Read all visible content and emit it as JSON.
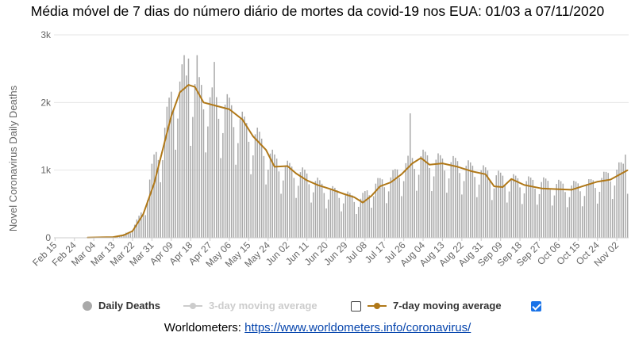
{
  "title": "Média móvel de 7 dias do número diário de mortes da covid-19 nos EUA: 01/03 a 07/11/2020",
  "source": {
    "label": "Worldometers:",
    "link": "https://www.worldometers.info/coronavirus/"
  },
  "legend": {
    "daily": "Daily Deaths",
    "ma3": "3-day moving average",
    "ma7": "7-day moving average",
    "ma3_checked": false,
    "ma7_checked": true
  },
  "colors": {
    "bars": "#a9a9a9",
    "ma7": "#b07818",
    "ma3_disabled": "#cccccc",
    "grid": "#e6e6e6",
    "axis_text": "#666666"
  },
  "chart_data": {
    "type": "bar",
    "ylabel": "Novel Coronavirus Daily Deaths",
    "ylim": [
      0,
      3000
    ],
    "yticks": [
      0,
      1000,
      2000,
      3000
    ],
    "ytick_labels": [
      "0",
      "1k",
      "2k",
      "3k"
    ],
    "x_start": "Feb 15",
    "x_end": "Nov 07",
    "xtick_labels": [
      "Feb 15",
      "Feb 24",
      "Mar 04",
      "Mar 13",
      "Mar 22",
      "Mar 31",
      "Apr 09",
      "Apr 18",
      "Apr 27",
      "May 06",
      "May 15",
      "May 24",
      "Jun 02",
      "Jun 11",
      "Jun 20",
      "Jun 29",
      "Jul 08",
      "Jul 17",
      "Jul 26",
      "Aug 04",
      "Aug 13",
      "Aug 22",
      "Aug 31",
      "Sep 09",
      "Sep 18",
      "Sep 27",
      "Oct 06",
      "Oct 15",
      "Oct 24",
      "Nov 02"
    ],
    "grid": true,
    "series": [
      {
        "name": "Daily Deaths",
        "kind": "bars",
        "anchors": [
          {
            "date": "Feb 15",
            "value": 0
          },
          {
            "date": "Mar 01",
            "value": 1
          },
          {
            "date": "Mar 10",
            "value": 5
          },
          {
            "date": "Mar 17",
            "value": 30
          },
          {
            "date": "Mar 22",
            "value": 130
          },
          {
            "date": "Mar 27",
            "value": 400
          },
          {
            "date": "Apr 01",
            "value": 1100
          },
          {
            "date": "Apr 05",
            "value": 1400
          },
          {
            "date": "Apr 09",
            "value": 2000
          },
          {
            "date": "Apr 14",
            "value": 2250
          },
          {
            "date": "Apr 21",
            "value": 2150
          },
          {
            "date": "Apr 28",
            "value": 1950
          },
          {
            "date": "May 06",
            "value": 1850
          },
          {
            "date": "May 13",
            "value": 1600
          },
          {
            "date": "May 20",
            "value": 1400
          },
          {
            "date": "May 27",
            "value": 1100
          },
          {
            "date": "Jun 02",
            "value": 1000
          },
          {
            "date": "Jun 10",
            "value": 900
          },
          {
            "date": "Jun 20",
            "value": 700
          },
          {
            "date": "Jun 30",
            "value": 600
          },
          {
            "date": "Jul 06",
            "value": 550
          },
          {
            "date": "Jul 12",
            "value": 750
          },
          {
            "date": "Jul 20",
            "value": 850
          },
          {
            "date": "Jul 27",
            "value": 1050
          },
          {
            "date": "Aug 03",
            "value": 1150
          },
          {
            "date": "Aug 10",
            "value": 1100
          },
          {
            "date": "Aug 20",
            "value": 1050
          },
          {
            "date": "Aug 31",
            "value": 950
          },
          {
            "date": "Sep 10",
            "value": 850
          },
          {
            "date": "Sep 20",
            "value": 800
          },
          {
            "date": "Oct 01",
            "value": 780
          },
          {
            "date": "Oct 10",
            "value": 730
          },
          {
            "date": "Oct 20",
            "value": 760
          },
          {
            "date": "Oct 28",
            "value": 870
          },
          {
            "date": "Nov 07",
            "value": 1050
          }
        ],
        "peaks": [
          {
            "date": "Apr 15",
            "value": 2700
          },
          {
            "date": "Apr 17",
            "value": 2650
          },
          {
            "date": "Apr 21",
            "value": 2700
          },
          {
            "date": "Apr 29",
            "value": 2600
          },
          {
            "date": "Jul 29",
            "value": 1840
          },
          {
            "date": "Nov 06",
            "value": 1230
          }
        ]
      },
      {
        "name": "7-day moving average",
        "kind": "line",
        "points": [
          {
            "date": "Mar 01",
            "value": 2
          },
          {
            "date": "Mar 13",
            "value": 10
          },
          {
            "date": "Mar 18",
            "value": 40
          },
          {
            "date": "Mar 22",
            "value": 100
          },
          {
            "date": "Mar 27",
            "value": 350
          },
          {
            "date": "Apr 01",
            "value": 800
          },
          {
            "date": "Apr 05",
            "value": 1300
          },
          {
            "date": "Apr 09",
            "value": 1800
          },
          {
            "date": "Apr 13",
            "value": 2150
          },
          {
            "date": "Apr 17",
            "value": 2260
          },
          {
            "date": "Apr 20",
            "value": 2230
          },
          {
            "date": "Apr 24",
            "value": 2000
          },
          {
            "date": "Apr 30",
            "value": 1950
          },
          {
            "date": "May 06",
            "value": 1900
          },
          {
            "date": "May 12",
            "value": 1750
          },
          {
            "date": "May 17",
            "value": 1500
          },
          {
            "date": "May 23",
            "value": 1300
          },
          {
            "date": "May 27",
            "value": 1050
          },
          {
            "date": "Jun 02",
            "value": 1060
          },
          {
            "date": "Jun 06",
            "value": 950
          },
          {
            "date": "Jun 11",
            "value": 850
          },
          {
            "date": "Jun 16",
            "value": 780
          },
          {
            "date": "Jun 22",
            "value": 720
          },
          {
            "date": "Jun 28",
            "value": 650
          },
          {
            "date": "Jul 03",
            "value": 600
          },
          {
            "date": "Jul 07",
            "value": 520
          },
          {
            "date": "Jul 11",
            "value": 620
          },
          {
            "date": "Jul 15",
            "value": 760
          },
          {
            "date": "Jul 20",
            "value": 820
          },
          {
            "date": "Jul 25",
            "value": 940
          },
          {
            "date": "Jul 30",
            "value": 1100
          },
          {
            "date": "Aug 03",
            "value": 1180
          },
          {
            "date": "Aug 07",
            "value": 1080
          },
          {
            "date": "Aug 13",
            "value": 1100
          },
          {
            "date": "Aug 20",
            "value": 1050
          },
          {
            "date": "Aug 27",
            "value": 980
          },
          {
            "date": "Sep 02",
            "value": 940
          },
          {
            "date": "Sep 06",
            "value": 760
          },
          {
            "date": "Sep 10",
            "value": 750
          },
          {
            "date": "Sep 14",
            "value": 870
          },
          {
            "date": "Sep 20",
            "value": 780
          },
          {
            "date": "Sep 28",
            "value": 730
          },
          {
            "date": "Oct 05",
            "value": 720
          },
          {
            "date": "Oct 12",
            "value": 710
          },
          {
            "date": "Oct 17",
            "value": 760
          },
          {
            "date": "Oct 24",
            "value": 830
          },
          {
            "date": "Oct 30",
            "value": 860
          },
          {
            "date": "Nov 07",
            "value": 1000
          }
        ]
      }
    ]
  }
}
